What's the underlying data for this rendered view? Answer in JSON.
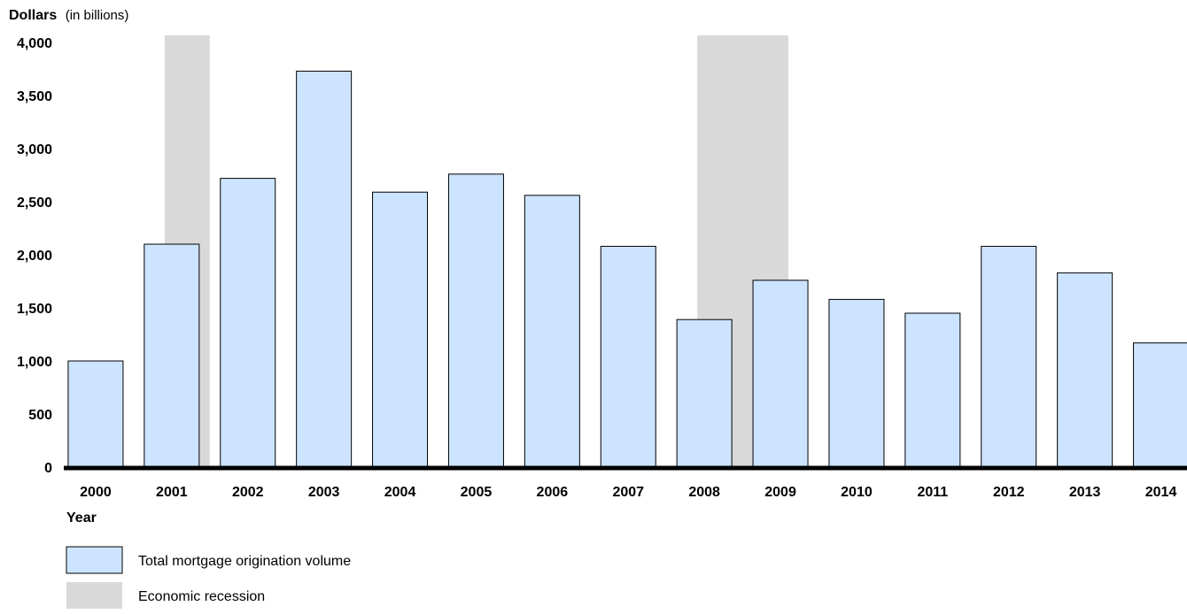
{
  "chart_data": {
    "type": "bar",
    "ylabel": "Dollars",
    "ylabel_unit": "(in billions)",
    "xlabel": "Year",
    "ylim": [
      0,
      4000
    ],
    "yticks": [
      "0",
      "500",
      "1,000",
      "1,500",
      "2,000",
      "2,500",
      "3,000",
      "3,500",
      "4,000"
    ],
    "ytick_values": [
      0,
      500,
      1000,
      1500,
      2000,
      2500,
      3000,
      3500,
      4000
    ],
    "categories": [
      "2000",
      "2001",
      "2002",
      "2003",
      "2004",
      "2005",
      "2006",
      "2007",
      "2008",
      "2009",
      "2010",
      "2011",
      "2012",
      "2013",
      "2014"
    ],
    "series": [
      {
        "name": "Total mortgage origination volume",
        "values": [
          1000,
          2100,
          2720,
          3730,
          2590,
          2760,
          2560,
          2080,
          1390,
          1760,
          1580,
          1450,
          2080,
          1830,
          1170
        ]
      }
    ],
    "shaded_regions": [
      {
        "name": "Economic recession",
        "start": "2001",
        "end": "2001"
      },
      {
        "name": "Economic recession",
        "start": "2008",
        "end": "2009"
      }
    ],
    "legend": [
      {
        "label": "Total mortgage origination volume",
        "kind": "bar"
      },
      {
        "label": "Economic recession",
        "kind": "shade"
      }
    ],
    "colors": {
      "bar_fill": "#cce4ff",
      "bar_stroke": "#000000",
      "recession": "#d9d9d9",
      "axis": "#000000"
    },
    "grid": false,
    "legend_position": "bottom-left"
  }
}
